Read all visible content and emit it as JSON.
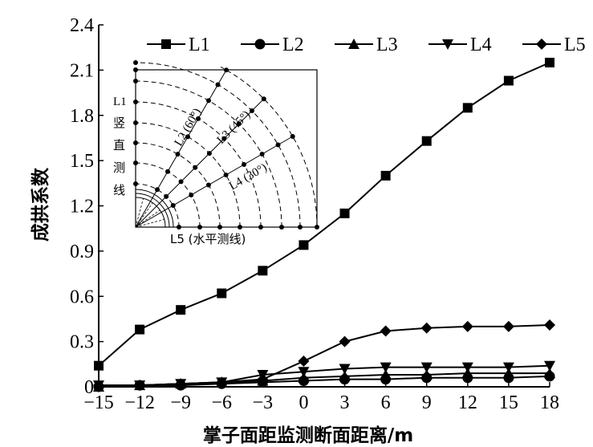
{
  "chart_data": {
    "type": "line",
    "xlabel": "掌子面距监测断面距离/m",
    "ylabel": "成拱系数",
    "x": [
      -15,
      -12,
      -9,
      -6,
      -3,
      0,
      3,
      6,
      9,
      12,
      15,
      18
    ],
    "xticks": [
      "−15",
      "−12",
      "−9",
      "−6",
      "−3",
      "0",
      "3",
      "6",
      "9",
      "12",
      "15",
      "18"
    ],
    "yticks": [
      "0",
      "0.3",
      "0.6",
      "0.9",
      "1.2",
      "1.5",
      "1.8",
      "2.1",
      "2.4"
    ],
    "ylim": [
      0,
      2.4
    ],
    "xlim": [
      -15,
      18
    ],
    "legend_position": "top",
    "series": [
      {
        "name": "L1",
        "marker": "square",
        "values": [
          0.14,
          0.38,
          0.51,
          0.62,
          0.77,
          0.94,
          1.15,
          1.4,
          1.63,
          1.85,
          2.03,
          2.15
        ]
      },
      {
        "name": "L2",
        "marker": "circle",
        "values": [
          0.0,
          0.01,
          0.01,
          0.02,
          0.03,
          0.04,
          0.05,
          0.05,
          0.06,
          0.06,
          0.06,
          0.07
        ]
      },
      {
        "name": "L3",
        "marker": "triangle-up",
        "values": [
          0.0,
          0.01,
          0.02,
          0.03,
          0.04,
          0.06,
          0.07,
          0.08,
          0.08,
          0.09,
          0.09,
          0.09
        ]
      },
      {
        "name": "L4",
        "marker": "triangle-down",
        "values": [
          0.01,
          0.01,
          0.02,
          0.03,
          0.08,
          0.1,
          0.12,
          0.13,
          0.13,
          0.13,
          0.13,
          0.14
        ]
      },
      {
        "name": "L5",
        "marker": "diamond",
        "values": [
          0.01,
          0.01,
          0.02,
          0.03,
          0.05,
          0.17,
          0.3,
          0.37,
          0.39,
          0.4,
          0.4,
          0.41
        ]
      }
    ]
  },
  "inset": {
    "l1_label": "L1",
    "vertical_label_chars": [
      "竖",
      "直",
      "测",
      "线"
    ],
    "l2_label": "L2 (60°)",
    "l3_label": "L3 (45°)",
    "l4_label": "L4 (30°)",
    "l5_label": "L5 (水平测线)"
  }
}
